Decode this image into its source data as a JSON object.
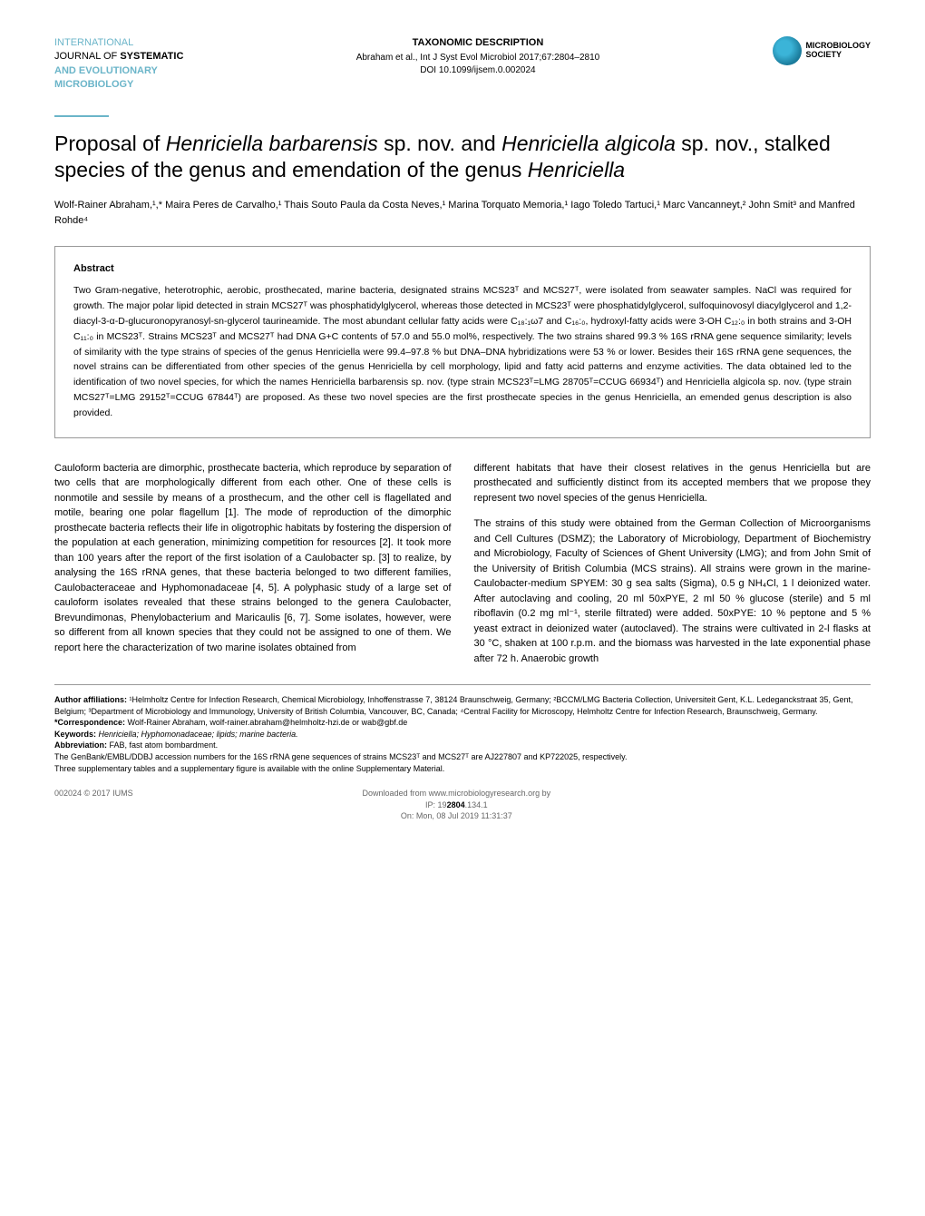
{
  "header": {
    "journal_line1": "INTERNATIONAL",
    "journal_line2_prefix": "JOURNAL OF ",
    "journal_line2_bold": "SYSTEMATIC",
    "journal_line3": "AND EVOLUTIONARY",
    "journal_line4": "MICROBIOLOGY",
    "section_label": "TAXONOMIC DESCRIPTION",
    "citation": "Abraham et al., Int J Syst Evol Microbiol 2017;67:2804–2810",
    "doi": "DOI 10.1099/ijsem.0.002024",
    "logo_text_line1": "MICROBIOLOGY",
    "logo_text_line2": "SOCIETY"
  },
  "title_parts": {
    "p1": "Proposal of ",
    "i1": "Henriciella barbarensis",
    "p2": " sp. nov. and ",
    "i2": "Henriciella algicola",
    "p3": " sp. nov., stalked species of the genus and emendation of the genus ",
    "i3": "Henriciella"
  },
  "authors": "Wolf-Rainer Abraham,¹,* Maira Peres de Carvalho,¹ Thais Souto Paula  da Costa Neves,¹ Marina Torquato Memoria,¹ Iago Toledo Tartuci,¹ Marc Vancanneyt,² John Smit³ and Manfred Rohde⁴",
  "abstract": {
    "heading": "Abstract",
    "text": "Two Gram-negative, heterotrophic, aerobic, prosthecated, marine bacteria, designated strains MCS23ᵀ and MCS27ᵀ, were isolated from seawater samples. NaCl was required for growth. The major polar lipid detected in strain MCS27ᵀ was phosphatidylglycerol, whereas those detected in MCS23ᵀ were phosphatidylglycerol, sulfoquinovosyl diacylglycerol and 1,2-diacyl-3-α-D-glucuronopyranosyl-sn-glycerol taurineamide. The most abundant cellular fatty acids were C₁₈:₁ω7 and C₁₆:₀, hydroxyl-fatty acids were 3-OH C₁₂:₀ in both strains and 3-OH C₁₁:₀ in MCS23ᵀ. Strains MCS23ᵀ and MCS27ᵀ had DNA G+C contents of 57.0 and 55.0 mol%, respectively. The two strains shared 99.3 % 16S rRNA gene sequence similarity; levels of similarity with the type strains of species of the genus  Henriciella were 99.4–97.8 % but DNA–DNA hybridizations were 53 % or lower. Besides their 16S rRNA gene sequences, the novel strains can be differentiated from other species of the genus Henriciella by cell morphology, lipid and fatty acid patterns and enzyme activities. The data obtained led to the identification of two novel species, for which the names Henriciella barbarensis sp. nov. (type strain MCS23ᵀ=LMG 28705ᵀ=CCUG 66934ᵀ) and Henriciella algicola sp. nov. (type strain MCS27ᵀ=LMG 29152ᵀ=CCUG 67844ᵀ) are proposed. As these two novel species are the first prosthecate species in the genus Henriciella, an emended genus description is also provided."
  },
  "body": {
    "col1": "Cauloform bacteria are dimorphic, prosthecate bacteria, which reproduce by separation of two cells that are morphologically different from each other. One of these cells is nonmotile and sessile by means of a prosthecum, and the other cell is flagellated and motile, bearing one polar flagellum [1]. The mode of reproduction of the dimorphic prosthecate bacteria reflects their life in oligotrophic habitats by fostering the dispersion of the population at each generation, minimizing competition for resources [2]. It took more than 100 years after the report of the first isolation of a Caulobacter sp. [3] to realize, by analysing the 16S rRNA genes, that these bacteria belonged to two different families, Caulobacteraceae and Hyphomonadaceae [4, 5]. A polyphasic study of a large set of cauloform isolates revealed that these strains belonged to the genera Caulobacter, Brevundimonas, Phenylobacterium and Maricaulis [6, 7]. Some isolates, however, were so different from all known species that they could not be assigned to one of them. We report here the characterization of two marine isolates obtained from",
    "col2": "different habitats that have their closest relatives in the genus Henriciella but are prosthecated and sufficiently distinct from its accepted members that we propose they represent two novel species of the genus Henriciella.\n\nThe strains of this study were obtained from the German Collection of Microorganisms and Cell Cultures (DSMZ); the Laboratory of Microbiology, Department of Biochemistry and Microbiology, Faculty of Sciences of Ghent University (LMG); and from John Smit of the University of British Columbia (MCS strains). All strains were grown in the marine-Caulobacter-medium SPYEM: 30 g sea salts (Sigma), 0.5 g NH₄Cl, 1 l deionized water. After autoclaving and cooling, 20 ml 50xPYE, 2 ml 50 % glucose (sterile) and 5 ml riboflavin (0.2 mg ml⁻¹, sterile filtrated) were added. 50xPYE: 10 % peptone and 5 % yeast extract in deionized water (autoclaved). The strains were cultivated in 2-l flasks at 30 °C, shaken at 100 r.p.m. and the biomass was harvested in the late exponential phase after 72 h. Anaerobic growth"
  },
  "footer": {
    "affiliations_label": "Author affiliations: ",
    "affiliations": "¹Helmholtz Centre for Infection Research, Chemical Microbiology, Inhoffenstrasse 7, 38124 Braunschweig, Germany; ²BCCM/LMG Bacteria Collection, Universiteit Gent, K.L. Ledeganckstraat 35, Gent, Belgium; ³Department of Microbiology and Immunology, University of British Columbia, Vancouver, BC, Canada; ⁴Central Facility for Microscopy, Helmholtz Centre for Infection Research, Braunschweig, Germany.",
    "correspondence_label": "*Correspondence: ",
    "correspondence": "Wolf-Rainer Abraham, wolf-rainer.abraham@helmholtz-hzi.de or wab@gbf.de",
    "keywords_label": "Keywords: ",
    "keywords": "Henriciella; Hyphomonadaceae; lipids; marine bacteria.",
    "abbreviation_label": "Abbreviation: ",
    "abbreviation": "FAB, fast atom bombardment.",
    "genbank": "The GenBank/EMBL/DDBJ accession numbers for the 16S rRNA gene sequences of strains MCS23ᵀ and MCS27ᵀ are AJ227807 and KP722025, respectively.",
    "supplementary": "Three supplementary tables and a supplementary figure is available with the online Supplementary Material.",
    "copyright": "002024 © 2017 IUMS",
    "downloaded": "Downloaded from www.microbiologyresearch.org by",
    "page_number": "2804",
    "ip": "IP: 19",
    "ip_suffix": ".134.1",
    "date": "On: Mon, 08 Jul 2019 11:31:37"
  }
}
